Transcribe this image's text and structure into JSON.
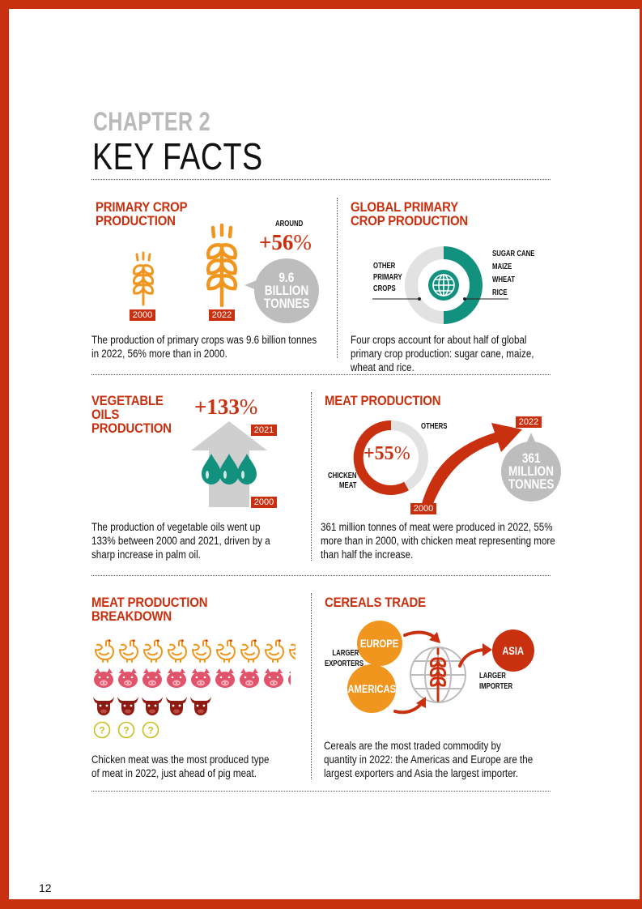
{
  "header": {
    "chapter": "CHAPTER 2",
    "title": "KEY FACTS"
  },
  "sections": {
    "primary_crop": {
      "title_line1": "PRIMARY CROP",
      "title_line2": "PRODUCTION",
      "year_a": "2000",
      "year_b": "2022",
      "around": "AROUND",
      "pct": "+56",
      "pct_sign": "%",
      "bubble_1": "9.6",
      "bubble_2": "BILLION",
      "bubble_3": "TONNES",
      "text": "The production of primary crops was 9.6 billion tonnes in 2022, 56% more than in 2000."
    },
    "global_primary": {
      "title_line1": "GLOBAL PRIMARY",
      "title_line2": "CROP PRODUCTION",
      "left_1": "OTHER",
      "left_2": "PRIMARY",
      "left_3": "CROPS",
      "right_1": "SUGAR CANE",
      "right_2": "MAIZE",
      "right_3": "WHEAT",
      "right_4": "RICE",
      "text": "Four crops account for about half of global primary crop production: sugar cane, maize, wheat and rice."
    },
    "veg_oils": {
      "title_line1": "VEGETABLE",
      "title_line2": "OILS",
      "title_line3": "PRODUCTION",
      "pct": "+133",
      "pct_sign": "%",
      "year_top": "2021",
      "year_bottom": "2000",
      "text": "The production of vegetable oils went up 133% between 2000 and 2021, driven by a sharp increase in palm oil."
    },
    "meat": {
      "title": "MEAT PRODUCTION",
      "others": "OTHERS",
      "chicken_1": "CHICKEN",
      "chicken_2": "MEAT",
      "pct": "+55",
      "pct_sign": "%",
      "year_top": "2022",
      "year_bottom": "2000",
      "bubble_1": "361",
      "bubble_2": "MILLION",
      "bubble_3": "TONNES",
      "text": "361 million tonnes of meat were produced in 2022, 55% more than in 2000, with chicken meat representing more than half the increase."
    },
    "meat_breakdown": {
      "title_line1": "MEAT PRODUCTION",
      "title_line2": "BREAKDOWN",
      "text": "Chicken meat was the most produced type of meat in 2022, just ahead of pig meat.",
      "chicken_count": 8.4,
      "pig_count": 8.2,
      "cattle_count": 5,
      "other_count": 3
    },
    "cereals": {
      "title": "CEREALS TRADE",
      "europe": "EUROPE",
      "americas": "AMERICAS",
      "asia": "ASIA",
      "exporters_1": "LARGER",
      "exporters_2": "EXPORTERS",
      "importer_1": "LARGER",
      "importer_2": "IMPORTER",
      "text": "Cereals are the most traded commodity by quantity in 2022: the Americas and Europe are the largest exporters and Asia the largest importer."
    }
  },
  "page_number": "12",
  "colors": {
    "brand_red": "#c8300f",
    "orange": "#f0961e",
    "teal": "#12917e",
    "gray": "#bdbdbd",
    "dark_red": "#8e1a12",
    "pink": "#e0536a"
  }
}
